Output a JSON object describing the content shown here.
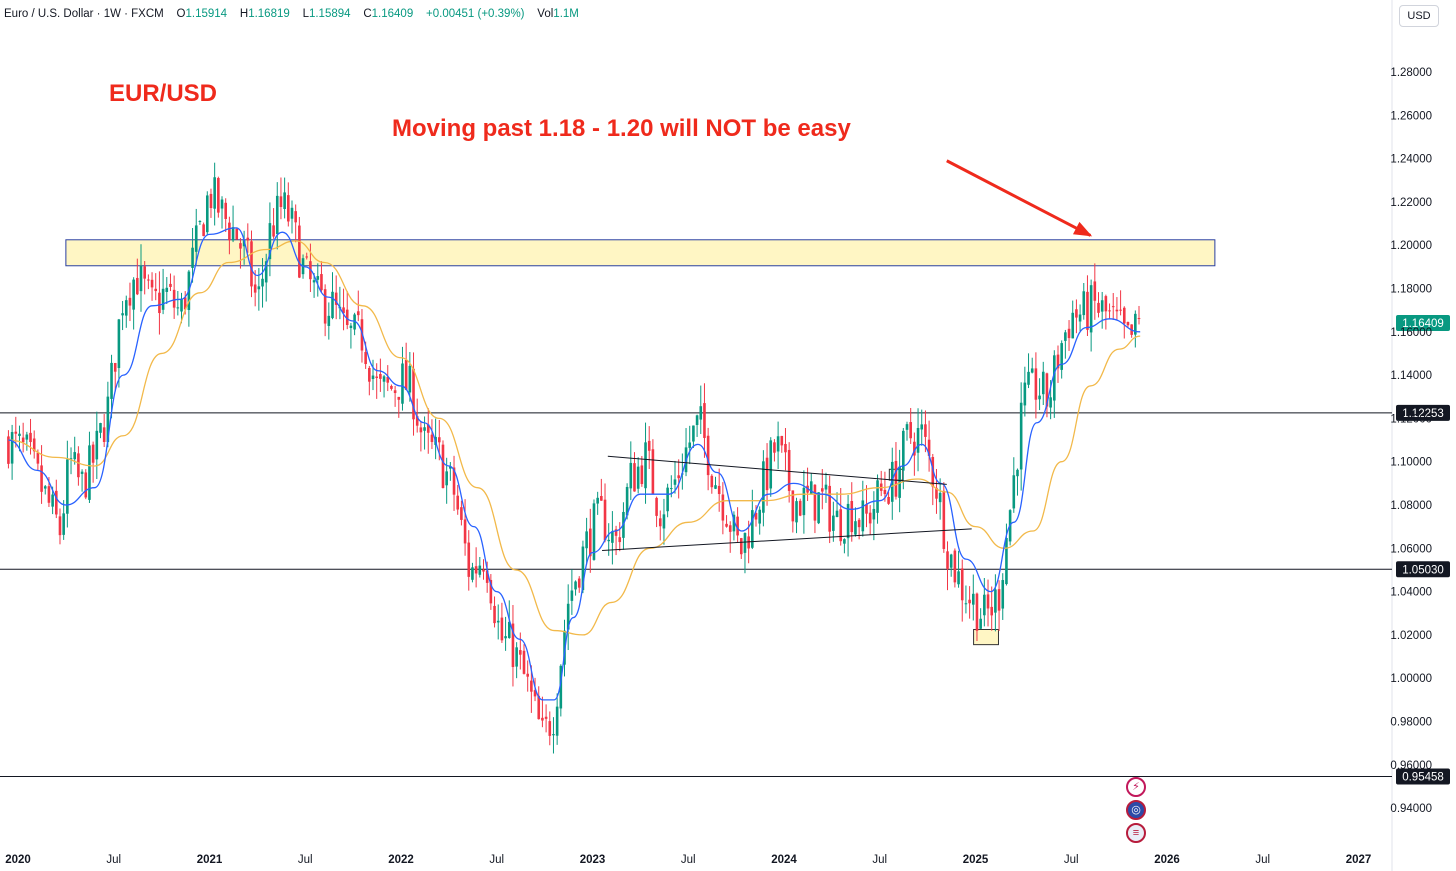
{
  "header": {
    "symbol": "Euro / U.S. Dollar · 1W · FXCM",
    "o_label": "O",
    "o_value": "1.15914",
    "h_label": "H",
    "h_value": "1.16819",
    "l_label": "L",
    "l_value": "1.15894",
    "c_label": "C",
    "c_value": "1.16409",
    "change": "+0.00451 (+0.39%)",
    "vol_label": "Vol",
    "vol_value": "1.1M"
  },
  "currency_button": "USD",
  "annotations": {
    "pair_label": "EUR/USD",
    "resistance_note": "Moving past 1.18 - 1.20 will NOT be easy"
  },
  "icons": [
    "lightning-icon",
    "globe-icon",
    "us-flag-icon"
  ],
  "colors": {
    "up": "#089981",
    "down": "#f23645",
    "ma_fast": "#2962ff",
    "ma_slow": "#f2b94a",
    "annotation": "#ef2a1c",
    "zone_fill": "#fff6c4",
    "zone_border": "#2a3fa0"
  },
  "chart_data": {
    "type": "candlestick",
    "instrument": "EUR/USD",
    "timeframe": "1W",
    "y_ticks": [
      "1.28000",
      "1.26000",
      "1.24000",
      "1.22000",
      "1.20000",
      "1.18000",
      "1.16000",
      "1.14000",
      "1.12000",
      "1.10000",
      "1.08000",
      "1.06000",
      "1.04000",
      "1.02000",
      "1.00000",
      "0.98000",
      "0.96000",
      "0.94000"
    ],
    "x_ticks": [
      {
        "label": "2020",
        "t": 2020.0,
        "bold": true
      },
      {
        "label": "Jul",
        "t": 2020.5,
        "bold": false
      },
      {
        "label": "2021",
        "t": 2021.0,
        "bold": true
      },
      {
        "label": "Jul",
        "t": 2021.5,
        "bold": false
      },
      {
        "label": "2022",
        "t": 2022.0,
        "bold": true
      },
      {
        "label": "Jul",
        "t": 2022.5,
        "bold": false
      },
      {
        "label": "2023",
        "t": 2023.0,
        "bold": true
      },
      {
        "label": "Jul",
        "t": 2023.5,
        "bold": false
      },
      {
        "label": "2024",
        "t": 2024.0,
        "bold": true
      },
      {
        "label": "Jul",
        "t": 2024.5,
        "bold": false
      },
      {
        "label": "2025",
        "t": 2025.0,
        "bold": true
      },
      {
        "label": "Jul",
        "t": 2025.5,
        "bold": false
      },
      {
        "label": "2026",
        "t": 2026.0,
        "bold": true
      },
      {
        "label": "Jul",
        "t": 2026.5,
        "bold": false
      },
      {
        "label": "2027",
        "t": 2027.0,
        "bold": true
      }
    ],
    "x_range": [
      2019.95,
      2027.5
    ],
    "y_range": [
      0.926,
      1.293
    ],
    "last_price": {
      "value": 1.16409,
      "label": "1.16409"
    },
    "horizontal_levels": [
      {
        "value": 1.12253,
        "label": "1.12253"
      },
      {
        "value": 1.0503,
        "label": "1.05030"
      },
      {
        "value": 0.95458,
        "label": "0.95458"
      }
    ],
    "resistance_zone": {
      "t_start": 2020.25,
      "t_end": 2026.25,
      "y_low": 1.1905,
      "y_high": 1.2025
    },
    "low_marker_box": {
      "t_start": 2024.99,
      "t_end": 2025.12,
      "y_low": 1.0155,
      "y_high": 1.0225
    },
    "small_box": {
      "t_start": 2024.55,
      "t_end": 2024.62,
      "y_low": 1.0915,
      "y_high": 1.0965
    },
    "trendlines": [
      {
        "t1": 2023.08,
        "y1": 1.1025,
        "t2": 2024.85,
        "y2": 1.0895
      },
      {
        "t1": 2023.05,
        "y1": 1.059,
        "t2": 2024.98,
        "y2": 1.069
      }
    ],
    "arrow": {
      "t1": 2024.85,
      "y1": 1.239,
      "t2": 2025.6,
      "y2": 1.2045
    },
    "price_path": [
      [
        2019.95,
        1.11
      ],
      [
        2020.05,
        1.103
      ],
      [
        2020.15,
        1.082
      ],
      [
        2020.22,
        1.068
      ],
      [
        2020.27,
        1.1
      ],
      [
        2020.33,
        1.088
      ],
      [
        2020.4,
        1.102
      ],
      [
        2020.47,
        1.125
      ],
      [
        2020.55,
        1.178
      ],
      [
        2020.62,
        1.186
      ],
      [
        2020.7,
        1.172
      ],
      [
        2020.77,
        1.178
      ],
      [
        2020.85,
        1.168
      ],
      [
        2020.92,
        1.195
      ],
      [
        2021.0,
        1.225
      ],
      [
        2021.06,
        1.215
      ],
      [
        2021.14,
        1.205
      ],
      [
        2021.2,
        1.192
      ],
      [
        2021.25,
        1.172
      ],
      [
        2021.32,
        1.208
      ],
      [
        2021.38,
        1.218
      ],
      [
        2021.42,
        1.212
      ],
      [
        2021.5,
        1.186
      ],
      [
        2021.56,
        1.176
      ],
      [
        2021.64,
        1.172
      ],
      [
        2021.72,
        1.158
      ],
      [
        2021.8,
        1.158
      ],
      [
        2021.88,
        1.132
      ],
      [
        2021.96,
        1.134
      ],
      [
        2022.0,
        1.138
      ],
      [
        2022.06,
        1.132
      ],
      [
        2022.12,
        1.108
      ],
      [
        2022.2,
        1.102
      ],
      [
        2022.28,
        1.085
      ],
      [
        2022.36,
        1.048
      ],
      [
        2022.44,
        1.058
      ],
      [
        2022.52,
        1.018
      ],
      [
        2022.58,
        1.015
      ],
      [
        2022.66,
        0.996
      ],
      [
        2022.74,
        0.972
      ],
      [
        2022.8,
        0.985
      ],
      [
        2022.87,
        1.035
      ],
      [
        2022.93,
        1.052
      ],
      [
        2023.0,
        1.07
      ],
      [
        2023.05,
        1.075
      ],
      [
        2023.12,
        1.062
      ],
      [
        2023.2,
        1.092
      ],
      [
        2023.28,
        1.102
      ],
      [
        2023.35,
        1.078
      ],
      [
        2023.42,
        1.088
      ],
      [
        2023.5,
        1.108
      ],
      [
        2023.56,
        1.118
      ],
      [
        2023.63,
        1.095
      ],
      [
        2023.7,
        1.078
      ],
      [
        2023.77,
        1.058
      ],
      [
        2023.84,
        1.075
      ],
      [
        2023.9,
        1.092
      ],
      [
        2023.96,
        1.108
      ],
      [
        2024.05,
        1.082
      ],
      [
        2024.12,
        1.082
      ],
      [
        2024.2,
        1.082
      ],
      [
        2024.28,
        1.072
      ],
      [
        2024.35,
        1.078
      ],
      [
        2024.42,
        1.072
      ],
      [
        2024.5,
        1.085
      ],
      [
        2024.58,
        1.092
      ],
      [
        2024.65,
        1.112
      ],
      [
        2024.72,
        1.112
      ],
      [
        2024.8,
        1.088
      ],
      [
        2024.86,
        1.058
      ],
      [
        2024.93,
        1.042
      ],
      [
        2024.99,
        1.035
      ],
      [
        2025.05,
        1.028
      ],
      [
        2025.12,
        1.038
      ],
      [
        2025.18,
        1.078
      ],
      [
        2025.25,
        1.128
      ],
      [
        2025.32,
        1.135
      ],
      [
        2025.38,
        1.128
      ],
      [
        2025.44,
        1.152
      ],
      [
        2025.5,
        1.168
      ],
      [
        2025.56,
        1.168
      ],
      [
        2025.62,
        1.172
      ],
      [
        2025.68,
        1.168
      ],
      [
        2025.75,
        1.162
      ],
      [
        2025.8,
        1.155
      ],
      [
        2025.86,
        1.164
      ]
    ],
    "ma_fast_points": [
      [
        2019.95,
        1.11
      ],
      [
        2020.1,
        1.096
      ],
      [
        2020.25,
        1.08
      ],
      [
        2020.4,
        1.088
      ],
      [
        2020.55,
        1.14
      ],
      [
        2020.7,
        1.172
      ],
      [
        2020.85,
        1.175
      ],
      [
        2021.0,
        1.205
      ],
      [
        2021.14,
        1.208
      ],
      [
        2021.25,
        1.186
      ],
      [
        2021.38,
        1.206
      ],
      [
        2021.5,
        1.19
      ],
      [
        2021.62,
        1.176
      ],
      [
        2021.75,
        1.165
      ],
      [
        2021.88,
        1.142
      ],
      [
        2022.0,
        1.135
      ],
      [
        2022.12,
        1.118
      ],
      [
        2022.25,
        1.098
      ],
      [
        2022.38,
        1.07
      ],
      [
        2022.5,
        1.04
      ],
      [
        2022.62,
        1.018
      ],
      [
        2022.74,
        0.99
      ],
      [
        2022.8,
        0.99
      ],
      [
        2022.9,
        1.028
      ],
      [
        2023.0,
        1.058
      ],
      [
        2023.12,
        1.068
      ],
      [
        2023.25,
        1.085
      ],
      [
        2023.4,
        1.085
      ],
      [
        2023.55,
        1.108
      ],
      [
        2023.65,
        1.095
      ],
      [
        2023.78,
        1.068
      ],
      [
        2023.92,
        1.085
      ],
      [
        2024.05,
        1.09
      ],
      [
        2024.2,
        1.085
      ],
      [
        2024.35,
        1.078
      ],
      [
        2024.5,
        1.082
      ],
      [
        2024.62,
        1.098
      ],
      [
        2024.72,
        1.108
      ],
      [
        2024.82,
        1.09
      ],
      [
        2024.95,
        1.055
      ],
      [
        2025.08,
        1.04
      ],
      [
        2025.2,
        1.072
      ],
      [
        2025.32,
        1.118
      ],
      [
        2025.45,
        1.145
      ],
      [
        2025.58,
        1.162
      ],
      [
        2025.7,
        1.166
      ],
      [
        2025.86,
        1.16
      ]
    ],
    "ma_slow_points": [
      [
        2019.95,
        1.11
      ],
      [
        2020.2,
        1.102
      ],
      [
        2020.4,
        1.098
      ],
      [
        2020.55,
        1.112
      ],
      [
        2020.75,
        1.15
      ],
      [
        2020.95,
        1.178
      ],
      [
        2021.1,
        1.192
      ],
      [
        2021.3,
        1.198
      ],
      [
        2021.45,
        1.202
      ],
      [
        2021.6,
        1.192
      ],
      [
        2021.8,
        1.172
      ],
      [
        2022.0,
        1.148
      ],
      [
        2022.2,
        1.12
      ],
      [
        2022.4,
        1.088
      ],
      [
        2022.6,
        1.05
      ],
      [
        2022.8,
        1.022
      ],
      [
        2022.95,
        1.02
      ],
      [
        2023.1,
        1.035
      ],
      [
        2023.3,
        1.06
      ],
      [
        2023.5,
        1.072
      ],
      [
        2023.7,
        1.082
      ],
      [
        2023.9,
        1.082
      ],
      [
        2024.1,
        1.085
      ],
      [
        2024.3,
        1.085
      ],
      [
        2024.5,
        1.088
      ],
      [
        2024.7,
        1.092
      ],
      [
        2024.85,
        1.086
      ],
      [
        2025.0,
        1.07
      ],
      [
        2025.15,
        1.06
      ],
      [
        2025.3,
        1.068
      ],
      [
        2025.45,
        1.1
      ],
      [
        2025.6,
        1.135
      ],
      [
        2025.75,
        1.152
      ],
      [
        2025.86,
        1.158
      ]
    ]
  }
}
